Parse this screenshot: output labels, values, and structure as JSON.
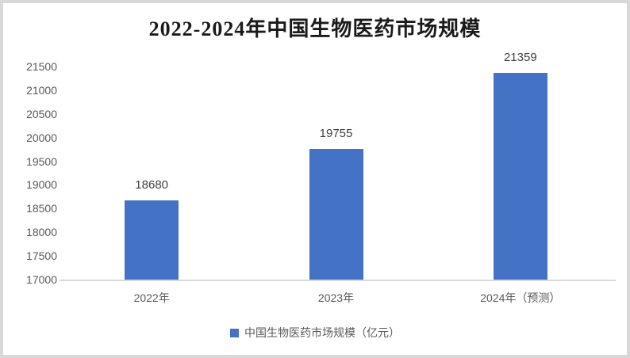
{
  "chart_data": {
    "type": "bar",
    "title": "2022-2024年中国生物医药市场规模",
    "categories": [
      "2022年",
      "2023年",
      "2024年（预测）"
    ],
    "series": [
      {
        "name": "中国生物医药市场规模（亿元）",
        "values": [
          18680,
          19755,
          21359
        ],
        "color": "#4472C4"
      }
    ],
    "data_labels": [
      "18680",
      "19755",
      "21359"
    ],
    "ylim": [
      17000,
      21500
    ],
    "yticks": [
      17000,
      17500,
      18000,
      18500,
      19000,
      19500,
      20000,
      20500,
      21000,
      21500
    ],
    "grid": false,
    "legend_position": "bottom",
    "legend_label": "中国生物医药市场规模（亿元）",
    "colors": {
      "bar": "#4472C4",
      "axis_line": "#d9d9d9",
      "axis_text": "#595959",
      "data_label_text": "#404040",
      "title_text": "#1a1a1a",
      "frame_border": "#d8d8d8"
    }
  }
}
